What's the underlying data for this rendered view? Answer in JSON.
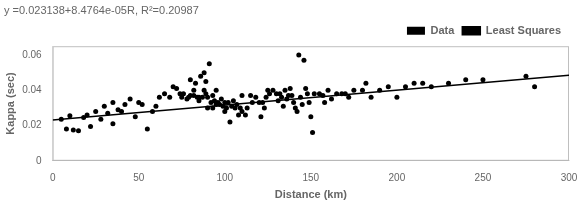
{
  "chart_data": {
    "type": "scatter",
    "xlabel": "Distance (km)",
    "ylabel": "Kappa (sec)",
    "annotations": [
      "y =0.023138+8.4764e-05R, R²=0.20987"
    ],
    "xlim": [
      0,
      300
    ],
    "ylim": [
      0,
      0.065
    ],
    "xticks": [
      0,
      50,
      100,
      150,
      200,
      250,
      300
    ],
    "yticks": [
      0,
      0.02,
      0.04,
      0.06
    ],
    "grid": false,
    "legend": "upper right",
    "series": [
      {
        "name": "Data",
        "type": "scatter",
        "color": "black",
        "marker": "circle",
        "x": [
          5,
          8,
          10,
          12,
          15,
          18,
          20,
          22,
          25,
          28,
          30,
          32,
          35,
          35,
          38,
          40,
          42,
          45,
          48,
          50,
          52,
          55,
          58,
          60,
          62,
          65,
          68,
          70,
          72,
          74,
          75,
          76,
          78,
          79,
          80,
          80,
          82,
          82,
          83,
          84,
          85,
          85,
          86,
          87,
          88,
          88,
          89,
          89,
          90,
          90,
          91,
          92,
          93,
          93,
          94,
          95,
          95,
          96,
          97,
          98,
          99,
          100,
          100,
          101,
          102,
          103,
          104,
          105,
          106,
          107,
          108,
          109,
          110,
          110,
          112,
          113,
          115,
          116,
          118,
          120,
          121,
          122,
          123,
          124,
          125,
          126,
          128,
          130,
          131,
          132,
          133,
          134,
          135,
          136,
          137,
          138,
          139,
          140,
          141,
          142,
          143,
          144,
          145,
          146,
          147,
          148,
          149,
          150,
          151,
          152,
          155,
          157,
          158,
          160,
          162,
          165,
          168,
          170,
          172,
          175,
          180,
          182,
          185,
          190,
          195,
          200,
          205,
          210,
          215,
          220,
          230,
          240,
          250,
          275,
          280
        ],
        "values": [
          0.0235,
          0.018,
          0.0255,
          0.0175,
          0.017,
          0.0245,
          0.026,
          0.0195,
          0.028,
          0.0235,
          0.031,
          0.027,
          0.033,
          0.021,
          0.029,
          0.028,
          0.032,
          0.035,
          0.025,
          0.033,
          0.032,
          0.018,
          0.028,
          0.031,
          0.036,
          0.038,
          0.036,
          0.042,
          0.041,
          0.038,
          0.036,
          0.038,
          0.035,
          0.036,
          0.046,
          0.037,
          0.037,
          0.04,
          0.044,
          0.036,
          0.036,
          0.034,
          0.048,
          0.036,
          0.04,
          0.05,
          0.045,
          0.038,
          0.036,
          0.03,
          0.055,
          0.033,
          0.037,
          0.03,
          0.034,
          0.032,
          0.04,
          0.033,
          0.032,
          0.035,
          0.031,
          0.028,
          0.033,
          0.03,
          0.033,
          0.022,
          0.031,
          0.034,
          0.03,
          0.032,
          0.026,
          0.03,
          0.028,
          0.037,
          0.026,
          0.03,
          0.037,
          0.033,
          0.036,
          0.033,
          0.025,
          0.033,
          0.03,
          0.036,
          0.04,
          0.038,
          0.04,
          0.038,
          0.034,
          0.038,
          0.036,
          0.031,
          0.04,
          0.035,
          0.037,
          0.041,
          0.037,
          0.033,
          0.03,
          0.028,
          0.06,
          0.036,
          0.032,
          0.057,
          0.041,
          0.038,
          0.033,
          0.025,
          0.016,
          0.038,
          0.038,
          0.037,
          0.033,
          0.04,
          0.035,
          0.038,
          0.038,
          0.038,
          0.036,
          0.04,
          0.04,
          0.044,
          0.036,
          0.04,
          0.042,
          0.036,
          0.042,
          0.044,
          0.044,
          0.042,
          0.044,
          0.046,
          0.046,
          0.048,
          0.042
        ]
      },
      {
        "name": "Least Squares",
        "type": "line",
        "color": "black",
        "x": [
          0,
          300
        ],
        "values": [
          0.023138,
          0.0485672
        ]
      }
    ]
  }
}
